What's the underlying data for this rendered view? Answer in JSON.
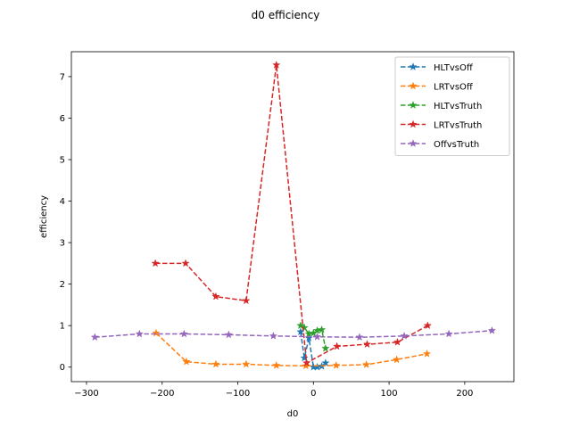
{
  "chart_data": {
    "type": "line",
    "title": "d0 efficiency",
    "xlabel": "d0",
    "ylabel": "efficiency",
    "xlim": [
      -320,
      265
    ],
    "ylim": [
      -0.35,
      7.6
    ],
    "xticks": [
      -300,
      -200,
      -100,
      0,
      100,
      200
    ],
    "yticks": [
      0,
      1,
      2,
      3,
      4,
      5,
      6,
      7
    ],
    "legend_position": "top-right",
    "grid": false,
    "series": [
      {
        "name": "HLTvsOff",
        "color": "#1f77b4",
        "x": [
          -17,
          -12,
          -6,
          0,
          5,
          11,
          16
        ],
        "y": [
          0.85,
          0.22,
          0.7,
          0.0,
          0.0,
          0.02,
          0.1
        ]
      },
      {
        "name": "LRTvsOff",
        "color": "#ff7f0e",
        "x": [
          -208,
          -168,
          -129,
          -89,
          -49,
          -10,
          30,
          70,
          110,
          150
        ],
        "y": [
          0.82,
          0.13,
          0.07,
          0.07,
          0.04,
          0.03,
          0.04,
          0.06,
          0.18,
          0.32
        ]
      },
      {
        "name": "HLTvsTruth",
        "color": "#2ca02c",
        "x": [
          -17,
          -12,
          -6,
          0,
          5,
          11,
          16
        ],
        "y": [
          1.0,
          0.95,
          0.8,
          0.82,
          0.88,
          0.9,
          0.45
        ]
      },
      {
        "name": "LRTvsTruth",
        "color": "#d62728",
        "x": [
          -209,
          -169,
          -129,
          -89,
          -49,
          -9,
          31,
          71,
          111,
          151
        ],
        "y": [
          2.5,
          2.5,
          1.7,
          1.6,
          7.28,
          0.1,
          0.5,
          0.55,
          0.6,
          1.0
        ]
      },
      {
        "name": "OffvsTruth",
        "color": "#9467bd",
        "x": [
          -289,
          -230,
          -171,
          -112,
          -53,
          5,
          61,
          120,
          179,
          236
        ],
        "y": [
          0.72,
          0.8,
          0.8,
          0.78,
          0.75,
          0.73,
          0.72,
          0.75,
          0.8,
          0.88
        ]
      }
    ]
  }
}
